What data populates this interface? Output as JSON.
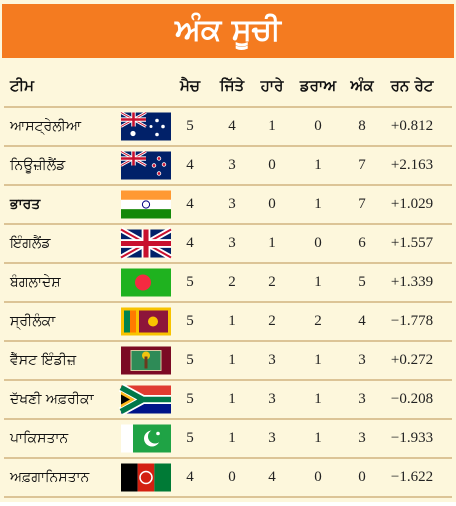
{
  "header": {
    "title": "ਅੰਕ ਸੂਚੀ"
  },
  "table": {
    "columns": [
      "ਟੀਮ",
      "ਮੈਚ",
      "ਜਿੱਤੇ",
      "ਹਾਰੇ",
      "ਡਰਾਅ",
      "ਅੰਕ",
      "ਰਨ ਰੇਟ"
    ],
    "rows": [
      [
        "ਆਸਟ੍ਰੇਲੀਆ",
        "5",
        "4",
        "1",
        "0",
        "8",
        "+0.812"
      ],
      [
        "ਨਿਊਜ਼ੀਲੈਂਡ",
        "4",
        "3",
        "0",
        "1",
        "7",
        "+2.163"
      ],
      [
        "ਭਾਰਤ",
        "4",
        "3",
        "0",
        "1",
        "7",
        "+1.029"
      ],
      [
        "ਇੰਗਲੈਂਡ",
        "4",
        "3",
        "1",
        "0",
        "6",
        "+1.557"
      ],
      [
        "ਬੰਗਲਾਦੇਸ਼",
        "5",
        "2",
        "2",
        "1",
        "5",
        "+1.339"
      ],
      [
        "ਸ੍ਰੀਲੰਕਾ",
        "5",
        "1",
        "2",
        "2",
        "4",
        "−1.778"
      ],
      [
        "ਵੈੱਸਟ ਇੰਡੀਜ਼",
        "5",
        "1",
        "3",
        "1",
        "3",
        "+0.272"
      ],
      [
        "ਦੱਖਣੀ ਅਫ਼ਰੀਕਾ",
        "5",
        "1",
        "3",
        "1",
        "3",
        "−0.208"
      ],
      [
        "ਪਾਕਿਸਤਾਨ",
        "5",
        "1",
        "3",
        "1",
        "3",
        "−1.933"
      ],
      [
        "ਅਫ਼ਗਾਨਿਸਤਾਨ",
        "4",
        "0",
        "4",
        "0",
        "0",
        "−1.622"
      ]
    ]
  }
}
